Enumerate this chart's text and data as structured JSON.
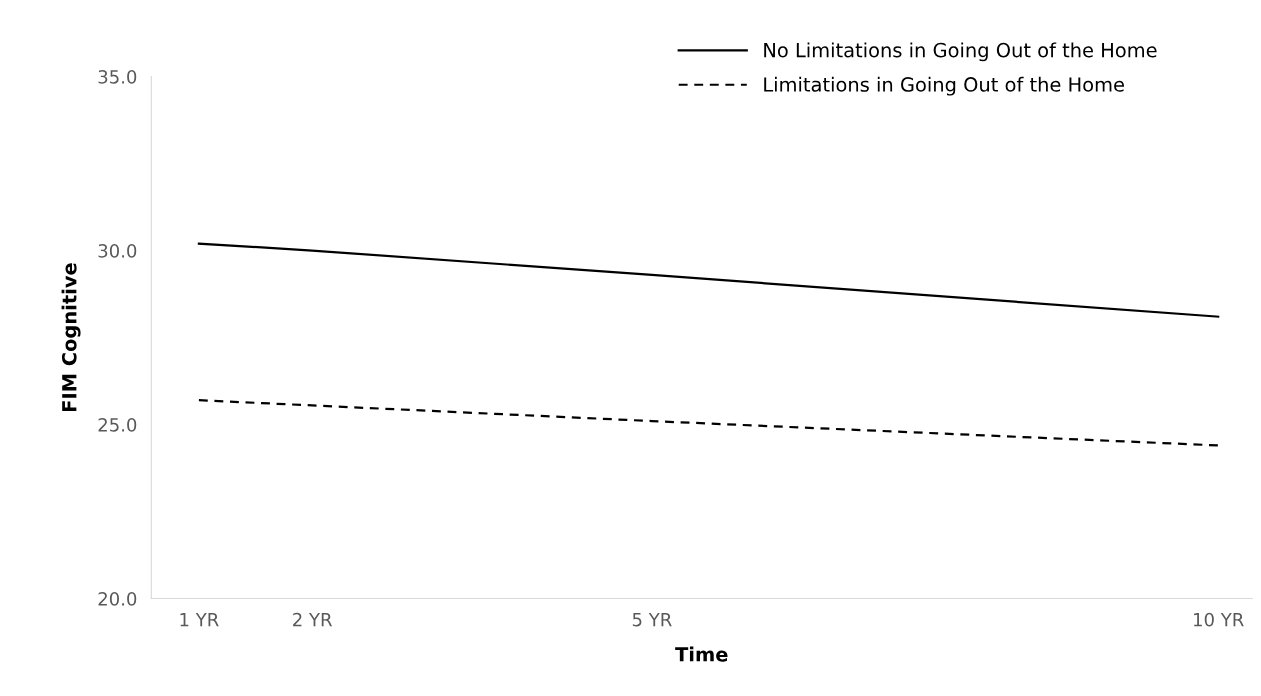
{
  "chart_data": {
    "type": "line",
    "xlabel": "Time",
    "ylabel": "FIM Cognitive",
    "x": [
      1,
      2,
      5,
      10
    ],
    "series": [
      {
        "name": "No Limitations in Going Out of the Home",
        "color": "#000000",
        "line_style": "solid",
        "values": [
          30.2,
          30.0,
          29.3,
          28.1
        ]
      },
      {
        "name": "Limitations in Going Out of the Home",
        "color": "#000000",
        "line_style": "dashed",
        "values": [
          25.7,
          25.55,
          25.1,
          24.4
        ]
      }
    ],
    "xlim": [
      0.58,
      10.3
    ],
    "xticks": [
      {
        "value": 1,
        "label": "1 YR"
      },
      {
        "value": 2,
        "label": "2 YR"
      },
      {
        "value": 5,
        "label": "5 YR"
      },
      {
        "value": 10,
        "label": "10 YR"
      }
    ],
    "ylim": [
      20,
      35
    ],
    "yticks": [
      {
        "value": 20,
        "label": "20.0"
      },
      {
        "value": 25,
        "label": "25.0"
      },
      {
        "value": 30,
        "label": "30.0"
      },
      {
        "value": 35,
        "label": "35.0"
      }
    ],
    "grid": false,
    "legend": "top right",
    "marker": "none"
  }
}
